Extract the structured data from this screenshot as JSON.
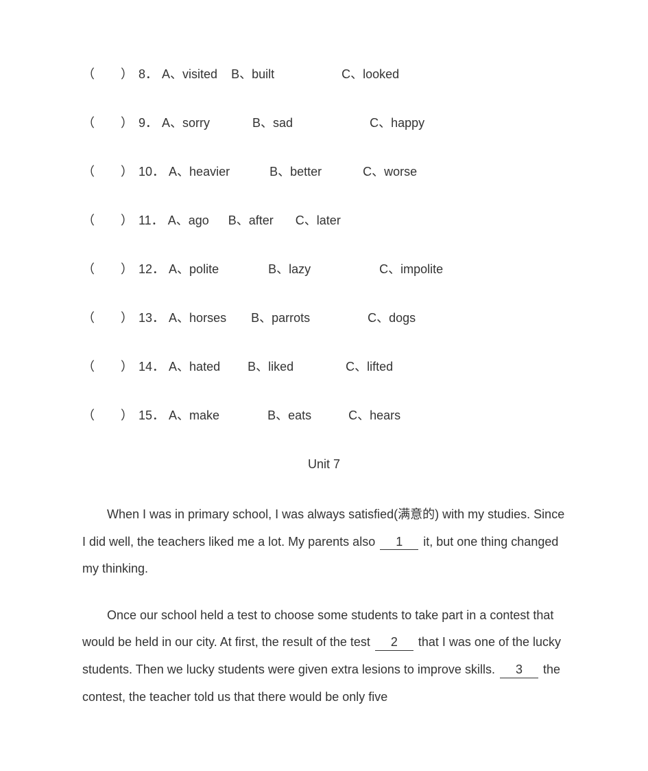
{
  "questions": [
    {
      "num": "8",
      "options": [
        {
          "letter": "A",
          "text": "visited",
          "gap_before": 0,
          "gap_after": 20
        },
        {
          "letter": "B",
          "text": "built",
          "gap_before": 0,
          "gap_after": 98
        },
        {
          "letter": "C",
          "text": "looked",
          "gap_before": 0,
          "gap_after": 0
        }
      ]
    },
    {
      "num": "9",
      "options": [
        {
          "letter": "A",
          "text": "sorry",
          "gap_before": 0,
          "gap_after": 62
        },
        {
          "letter": "B",
          "text": "sad",
          "gap_before": 0,
          "gap_after": 112
        },
        {
          "letter": "C",
          "text": "happy",
          "gap_before": 0,
          "gap_after": 0
        }
      ]
    },
    {
      "num": "10",
      "options": [
        {
          "letter": "A",
          "text": "heavier",
          "gap_before": 0,
          "gap_after": 58
        },
        {
          "letter": "B",
          "text": "better",
          "gap_before": 0,
          "gap_after": 60
        },
        {
          "letter": "C",
          "text": "worse",
          "gap_before": 0,
          "gap_after": 0
        }
      ]
    },
    {
      "num": "11",
      "options": [
        {
          "letter": "A",
          "text": "ago",
          "gap_before": 0,
          "gap_after": 28
        },
        {
          "letter": "B",
          "text": "after",
          "gap_before": 0,
          "gap_after": 32
        },
        {
          "letter": "C",
          "text": "later",
          "gap_before": 0,
          "gap_after": 0
        }
      ]
    },
    {
      "num": "12",
      "options": [
        {
          "letter": "A",
          "text": "polite",
          "gap_before": 0,
          "gap_after": 72
        },
        {
          "letter": "B",
          "text": "lazy",
          "gap_before": 0,
          "gap_after": 100
        },
        {
          "letter": "C",
          "text": "impolite",
          "gap_before": 0,
          "gap_after": 0
        }
      ]
    },
    {
      "num": "13",
      "options": [
        {
          "letter": "A",
          "text": "horses",
          "gap_before": 0,
          "gap_after": 36
        },
        {
          "letter": "B",
          "text": "parrots",
          "gap_before": 0,
          "gap_after": 84
        },
        {
          "letter": "C",
          "text": "dogs",
          "gap_before": 0,
          "gap_after": 0
        }
      ]
    },
    {
      "num": "14",
      "options": [
        {
          "letter": "A",
          "text": "hated",
          "gap_before": 0,
          "gap_after": 40
        },
        {
          "letter": "B",
          "text": "liked",
          "gap_before": 0,
          "gap_after": 76
        },
        {
          "letter": "C",
          "text": "lifted",
          "gap_before": 0,
          "gap_after": 0
        }
      ]
    },
    {
      "num": "15",
      "options": [
        {
          "letter": "A",
          "text": "make",
          "gap_before": 0,
          "gap_after": 70
        },
        {
          "letter": "B",
          "text": "eats",
          "gap_before": 0,
          "gap_after": 54
        },
        {
          "letter": "C",
          "text": "hears",
          "gap_before": 0,
          "gap_after": 0
        }
      ]
    }
  ],
  "unit_title": "Unit 7",
  "passage": {
    "p1_part1": "When I was in primary school, I was always satisfied(满意的) with my studies. Since I did well, the teachers liked me a lot. My parents also ",
    "blank1": "1",
    "p1_part2": " it, but one thing changed my thinking.",
    "p2_part1": "Once our school held a test to choose some students to take part in a contest that would be held in our city. At first, the result of the test ",
    "blank2": "2",
    "p2_part2": " that I was one of the lucky students. Then we lucky students were given extra lesions to improve skills. ",
    "blank3": "3",
    "p2_part3": " the contest, the teacher told us that there would be only five"
  },
  "style": {
    "punct_after_num": "．",
    "punct_after_letter": "、",
    "paren_open": "（",
    "paren_close": "）"
  }
}
